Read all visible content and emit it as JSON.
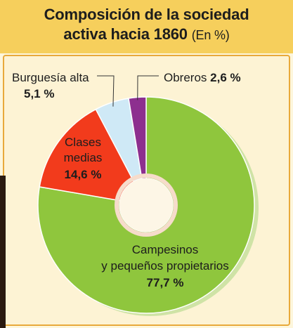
{
  "title": {
    "line1": "Composición de la sociedad",
    "line2": "activa hacia 1860",
    "unit": "(En %)"
  },
  "chart_data": {
    "type": "pie",
    "title": "Composición de la sociedad activa hacia 1860 (En %)",
    "unit": "%",
    "slices": [
      {
        "name": "Campesinos y pequeños propietarios",
        "label_lines": [
          "Campesinos",
          "y pequeños propietarios"
        ],
        "value": 77.7,
        "value_text": "77,7 %",
        "color": "#8fc63d"
      },
      {
        "name": "Clases medias",
        "label_lines": [
          "Clases",
          "medias"
        ],
        "value": 14.6,
        "value_text": "14,6 %",
        "color": "#f23b1c"
      },
      {
        "name": "Burguesía alta",
        "label_lines": [
          "Burguesía alta"
        ],
        "value": 5.1,
        "value_text": "5,1 %",
        "color": "#cfe9f6"
      },
      {
        "name": "Obreros",
        "label_lines": [
          "Obreros"
        ],
        "value": 2.6,
        "value_text": "2,6 %",
        "color": "#8d2f8f"
      }
    ]
  }
}
